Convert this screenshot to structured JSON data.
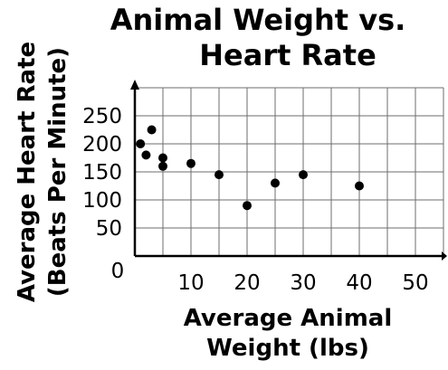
{
  "chart_data": {
    "type": "scatter",
    "title": [
      "Animal Weight vs.",
      "Heart Rate"
    ],
    "xlabel": [
      "Average Animal",
      "Weight (lbs)"
    ],
    "ylabel": [
      "Average Heart Rate",
      "(Beats Per Minute)"
    ],
    "origin_label": "0",
    "x_ticks": [
      "10",
      "20",
      "30",
      "40",
      "50"
    ],
    "y_ticks": [
      "50",
      "100",
      "150",
      "200",
      "250"
    ],
    "xlim": [
      0,
      55
    ],
    "ylim": [
      0,
      300
    ],
    "grid": true,
    "x_grid_step": 5,
    "y_grid_step": 50,
    "points": [
      {
        "x": 1,
        "y": 200
      },
      {
        "x": 2,
        "y": 180
      },
      {
        "x": 3,
        "y": 225
      },
      {
        "x": 5,
        "y": 175
      },
      {
        "x": 5,
        "y": 160
      },
      {
        "x": 10,
        "y": 165
      },
      {
        "x": 15,
        "y": 145
      },
      {
        "x": 20,
        "y": 90
      },
      {
        "x": 25,
        "y": 130
      },
      {
        "x": 30,
        "y": 145
      },
      {
        "x": 40,
        "y": 125
      }
    ],
    "colors": {
      "points": "#000000",
      "grid": "#6e6e6e",
      "axes": "#000000"
    }
  }
}
